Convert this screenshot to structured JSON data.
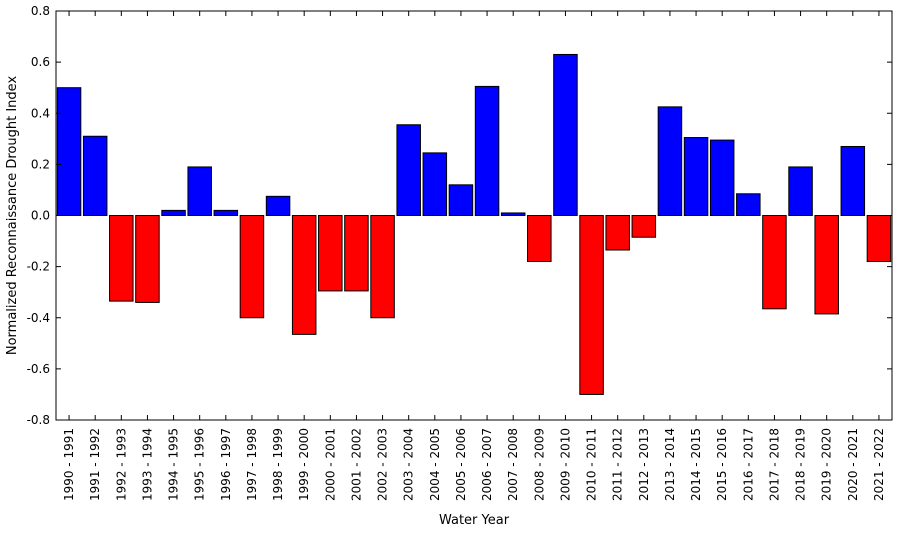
{
  "chart_data": {
    "type": "bar",
    "xlabel": "Water Year",
    "ylabel": "Normalized Reconnaissance Drought Index",
    "ylim": [
      -0.8,
      0.8
    ],
    "yticks": [
      "0.8",
      "0.6",
      "0.4",
      "0.2",
      "0.0",
      "-0.2",
      "-0.4",
      "-0.6",
      "-0.8"
    ],
    "grid": false,
    "legend": "none",
    "colors": {
      "positive": "#0000ff",
      "negative": "#ff0000",
      "edge": "#000000"
    },
    "categories": [
      "1990 - 1991",
      "1991 - 1992",
      "1992 - 1993",
      "1993 - 1994",
      "1994 - 1995",
      "1995 - 1996",
      "1996 - 1997",
      "1997 - 1998",
      "1998 - 1999",
      "1999 - 2000",
      "2000 - 2001",
      "2001 - 2002",
      "2002 - 2003",
      "2003 - 2004",
      "2004 - 2005",
      "2005 - 2006",
      "2006 - 2007",
      "2007 - 2008",
      "2008 - 2009",
      "2009 - 2010",
      "2010 - 2011",
      "2011 - 2012",
      "2012 - 2013",
      "2013 - 2014",
      "2014 - 2015",
      "2015 - 2016",
      "2016 - 2017",
      "2017 - 2018",
      "2018 - 2019",
      "2019 - 2020",
      "2020 - 2021",
      "2021 - 2022"
    ],
    "values": [
      0.5,
      0.31,
      -0.335,
      -0.34,
      0.02,
      0.19,
      0.02,
      -0.4,
      0.075,
      -0.465,
      -0.295,
      -0.295,
      -0.4,
      0.355,
      0.245,
      0.12,
      0.505,
      0.01,
      -0.18,
      0.63,
      -0.7,
      -0.135,
      -0.085,
      0.425,
      0.305,
      0.295,
      0.085,
      -0.365,
      0.19,
      -0.385,
      0.27,
      -0.18
    ]
  }
}
